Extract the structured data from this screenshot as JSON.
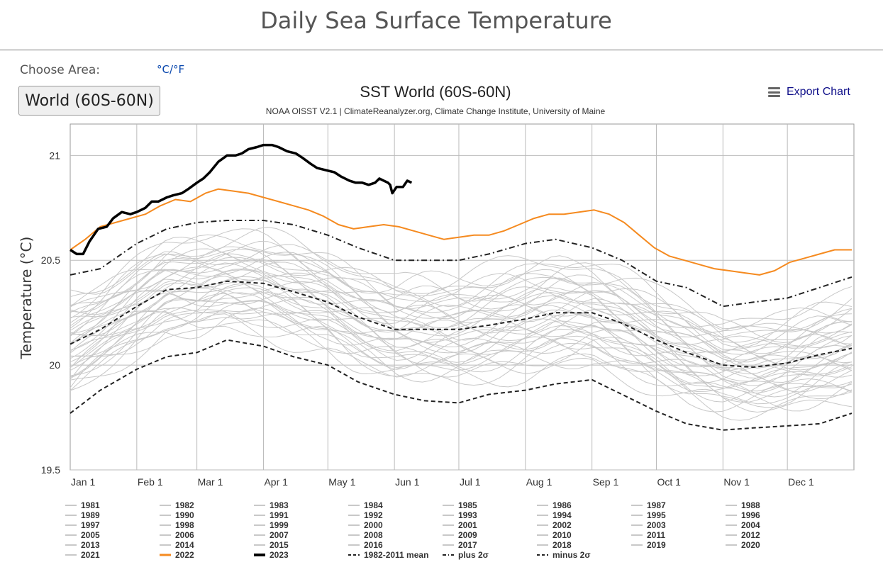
{
  "page": {
    "title": "Daily Sea Surface Temperature",
    "choose_area_label": "Choose Area:",
    "unit_toggle": "°C/°F",
    "area_button": "World (60S-60N)",
    "export_label": "Export Chart",
    "export_icon": "menu-icon"
  },
  "colors": {
    "history": "#c8c8c8",
    "y2022": "#f58a1f",
    "y2023": "#000000",
    "mean": "#222222",
    "grid": "#bbbbbb"
  },
  "chart_data": {
    "type": "line",
    "title": "SST World (60S-60N)",
    "subtitle": "NOAA OISST V2.1 | ClimateReanalyzer.org, Climate Change Institute, University of Maine",
    "ylabel": "Temperature (°C)",
    "xlabel": "",
    "ylim": [
      19.5,
      21.15
    ],
    "xlim": [
      1,
      366
    ],
    "y_ticks": [
      19.5,
      20,
      20.5,
      21
    ],
    "x_ticks": [
      {
        "day": 1,
        "label": "Jan 1"
      },
      {
        "day": 32,
        "label": "Feb 1"
      },
      {
        "day": 60,
        "label": "Mar 1"
      },
      {
        "day": 91,
        "label": "Apr 1"
      },
      {
        "day": 121,
        "label": "May 1"
      },
      {
        "day": 152,
        "label": "Jun 1"
      },
      {
        "day": 182,
        "label": "Jul 1"
      },
      {
        "day": 213,
        "label": "Aug 1"
      },
      {
        "day": 244,
        "label": "Sep 1"
      },
      {
        "day": 274,
        "label": "Oct 1"
      },
      {
        "day": 305,
        "label": "Nov 1"
      },
      {
        "day": 335,
        "label": "Dec 1"
      }
    ],
    "grid": true,
    "legend_position": "bottom",
    "series": [
      {
        "name": "2023",
        "style": "bold-black",
        "x": [
          1,
          4,
          7,
          10,
          14,
          18,
          21,
          25,
          29,
          32,
          36,
          39,
          42,
          46,
          49,
          53,
          56,
          60,
          63,
          66,
          70,
          74,
          78,
          81,
          84,
          88,
          91,
          95,
          98,
          102,
          106,
          109,
          113,
          116,
          120,
          124,
          127,
          131,
          134,
          137,
          140,
          143,
          145,
          147,
          149,
          150,
          151,
          153,
          156,
          158,
          160
        ],
        "y": [
          20.55,
          20.53,
          20.53,
          20.59,
          20.65,
          20.66,
          20.7,
          20.73,
          20.72,
          20.73,
          20.75,
          20.78,
          20.78,
          20.8,
          20.81,
          20.82,
          20.84,
          20.87,
          20.89,
          20.92,
          20.97,
          21.0,
          21.0,
          21.01,
          21.03,
          21.04,
          21.05,
          21.05,
          21.04,
          21.02,
          21.01,
          20.99,
          20.96,
          20.94,
          20.93,
          20.92,
          20.9,
          20.88,
          20.87,
          20.87,
          20.86,
          20.87,
          20.89,
          20.88,
          20.87,
          20.86,
          20.82,
          20.85,
          20.85,
          20.88,
          20.87
        ]
      },
      {
        "name": "2022",
        "style": "orange",
        "x": [
          1,
          8,
          15,
          22,
          29,
          36,
          43,
          50,
          57,
          64,
          70,
          77,
          84,
          91,
          98,
          105,
          112,
          119,
          126,
          133,
          140,
          147,
          154,
          161,
          168,
          175,
          182,
          189,
          196,
          203,
          210,
          217,
          224,
          231,
          238,
          245,
          252,
          259,
          266,
          273,
          280,
          287,
          294,
          301,
          308,
          315,
          322,
          329,
          336,
          343,
          350,
          357,
          365
        ],
        "y": [
          20.55,
          20.6,
          20.66,
          20.68,
          20.7,
          20.72,
          20.76,
          20.79,
          20.78,
          20.82,
          20.84,
          20.83,
          20.82,
          20.8,
          20.78,
          20.76,
          20.74,
          20.71,
          20.67,
          20.65,
          20.66,
          20.67,
          20.66,
          20.64,
          20.62,
          20.6,
          20.61,
          20.62,
          20.62,
          20.64,
          20.67,
          20.7,
          20.72,
          20.72,
          20.73,
          20.74,
          20.72,
          20.68,
          20.62,
          20.56,
          20.52,
          20.5,
          20.48,
          20.46,
          20.45,
          20.44,
          20.43,
          20.45,
          20.49,
          20.51,
          20.53,
          20.55,
          20.55
        ]
      },
      {
        "name": "1982-2011 mean",
        "style": "dashed",
        "x": [
          1,
          15,
          32,
          46,
          60,
          74,
          91,
          105,
          121,
          135,
          152,
          166,
          182,
          196,
          213,
          227,
          244,
          258,
          274,
          288,
          305,
          319,
          335,
          350,
          365
        ],
        "y": [
          20.1,
          20.17,
          20.28,
          20.36,
          20.37,
          20.4,
          20.39,
          20.35,
          20.3,
          20.23,
          20.17,
          20.17,
          20.17,
          20.19,
          20.22,
          20.25,
          20.25,
          20.2,
          20.12,
          20.06,
          20.0,
          19.99,
          20.01,
          20.05,
          20.08
        ]
      },
      {
        "name": "plus 2σ",
        "style": "dashdot",
        "x": [
          1,
          15,
          32,
          46,
          60,
          74,
          91,
          105,
          121,
          135,
          152,
          166,
          182,
          196,
          213,
          227,
          244,
          258,
          274,
          288,
          305,
          319,
          335,
          350,
          365
        ],
        "y": [
          20.43,
          20.46,
          20.58,
          20.65,
          20.68,
          20.69,
          20.69,
          20.67,
          20.62,
          20.56,
          20.5,
          20.5,
          20.5,
          20.53,
          20.58,
          20.6,
          20.56,
          20.5,
          20.4,
          20.37,
          20.28,
          20.3,
          20.32,
          20.37,
          20.42
        ]
      },
      {
        "name": "minus 2σ",
        "style": "dashed",
        "x": [
          1,
          15,
          32,
          46,
          60,
          74,
          91,
          105,
          121,
          135,
          152,
          166,
          182,
          196,
          213,
          227,
          244,
          258,
          274,
          288,
          305,
          319,
          335,
          350,
          365
        ],
        "y": [
          19.77,
          19.88,
          19.98,
          20.04,
          20.06,
          20.12,
          20.09,
          20.04,
          20.0,
          19.92,
          19.86,
          19.83,
          19.82,
          19.86,
          19.88,
          19.91,
          19.93,
          19.86,
          19.78,
          19.72,
          19.69,
          19.7,
          19.71,
          19.72,
          19.77
        ]
      }
    ],
    "background_years": [
      "1981",
      "1982",
      "1983",
      "1984",
      "1985",
      "1986",
      "1987",
      "1988",
      "1989",
      "1990",
      "1991",
      "1992",
      "1993",
      "1994",
      "1995",
      "1996",
      "1997",
      "1998",
      "1999",
      "2000",
      "2001",
      "2002",
      "2003",
      "2004",
      "2005",
      "2006",
      "2007",
      "2008",
      "2009",
      "2010",
      "2011",
      "2012",
      "2013",
      "2014",
      "2015",
      "2016",
      "2017",
      "2018",
      "2019",
      "2020",
      "2021"
    ],
    "legend": [
      {
        "label": "1981",
        "style": "thin"
      },
      {
        "label": "1982",
        "style": "thin"
      },
      {
        "label": "1983",
        "style": "thin"
      },
      {
        "label": "1984",
        "style": "thin"
      },
      {
        "label": "1985",
        "style": "thin"
      },
      {
        "label": "1986",
        "style": "thin"
      },
      {
        "label": "1987",
        "style": "thin"
      },
      {
        "label": "1988",
        "style": "thin"
      },
      {
        "label": "1989",
        "style": "thin"
      },
      {
        "label": "1990",
        "style": "thin"
      },
      {
        "label": "1991",
        "style": "thin"
      },
      {
        "label": "1992",
        "style": "thin"
      },
      {
        "label": "1993",
        "style": "thin"
      },
      {
        "label": "1994",
        "style": "thin"
      },
      {
        "label": "1995",
        "style": "thin"
      },
      {
        "label": "1996",
        "style": "thin"
      },
      {
        "label": "1997",
        "style": "thin"
      },
      {
        "label": "1998",
        "style": "thin"
      },
      {
        "label": "1999",
        "style": "thin"
      },
      {
        "label": "2000",
        "style": "thin"
      },
      {
        "label": "2001",
        "style": "thin"
      },
      {
        "label": "2002",
        "style": "thin"
      },
      {
        "label": "2003",
        "style": "thin"
      },
      {
        "label": "2004",
        "style": "thin"
      },
      {
        "label": "2005",
        "style": "thin"
      },
      {
        "label": "2006",
        "style": "thin"
      },
      {
        "label": "2007",
        "style": "thin"
      },
      {
        "label": "2008",
        "style": "thin"
      },
      {
        "label": "2009",
        "style": "thin"
      },
      {
        "label": "2010",
        "style": "thin"
      },
      {
        "label": "2011",
        "style": "thin"
      },
      {
        "label": "2012",
        "style": "thin"
      },
      {
        "label": "2013",
        "style": "thin"
      },
      {
        "label": "2014",
        "style": "thin"
      },
      {
        "label": "2015",
        "style": "thin"
      },
      {
        "label": "2016",
        "style": "thin"
      },
      {
        "label": "2017",
        "style": "thin"
      },
      {
        "label": "2018",
        "style": "thin"
      },
      {
        "label": "2019",
        "style": "thin"
      },
      {
        "label": "2020",
        "style": "thin"
      },
      {
        "label": "2021",
        "style": "thin"
      },
      {
        "label": "2022",
        "style": "orange"
      },
      {
        "label": "2023",
        "style": "bold-black"
      },
      {
        "label": "1982-2011 mean",
        "style": "dashed"
      },
      {
        "label": "plus 2σ",
        "style": "dashdot"
      },
      {
        "label": "minus 2σ",
        "style": "dashed"
      }
    ]
  }
}
